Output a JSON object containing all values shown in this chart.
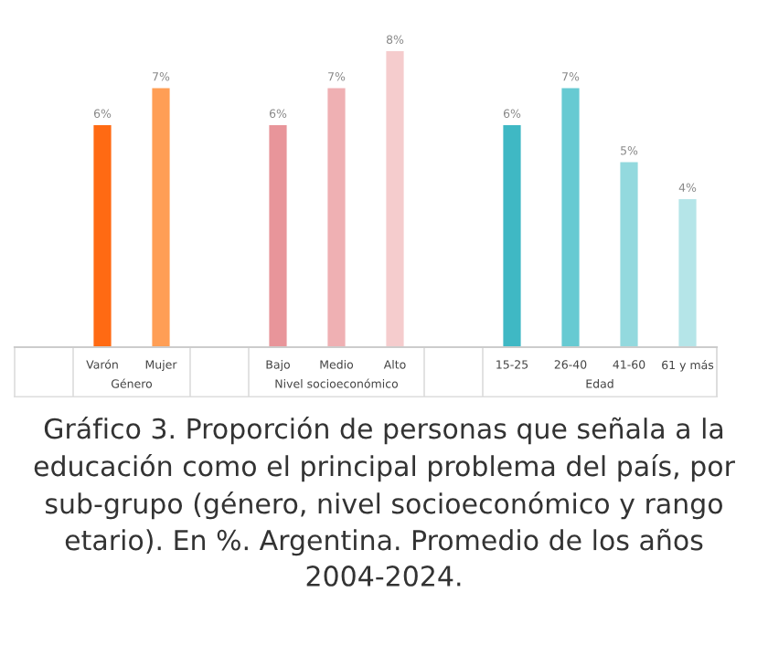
{
  "chart_data": {
    "type": "bar",
    "categories": [
      null,
      "Varón",
      "Mujer",
      null,
      "Bajo",
      "Medio",
      "Alto",
      null,
      "15-25",
      "26-40",
      "41-60",
      "61 y más"
    ],
    "values": [
      null,
      6,
      7,
      null,
      6,
      7,
      8,
      null,
      6,
      7,
      5,
      4
    ],
    "value_labels": [
      null,
      "6%",
      "7%",
      null,
      "6%",
      "7%",
      "8%",
      null,
      "6%",
      "7%",
      "5%",
      "4%"
    ],
    "colors": [
      null,
      "#ff6a13",
      "#ff9e55",
      null,
      "#e8959a",
      "#efb0b3",
      "#f5cccd",
      null,
      "#3fb8c4",
      "#67cad2",
      "#93d9de",
      "#b5e5e8"
    ],
    "annotations": [
      "Género",
      "Nivel socioeconómico",
      "Edad",
      "Gráfico 3. Proporción de personas que señala a la educación como el principal problema del país, por sub-grupo (género, nivel socioeconómico y rango etario). En %. Argentina. Promedio de los años 2004-2024."
    ]
  }
}
